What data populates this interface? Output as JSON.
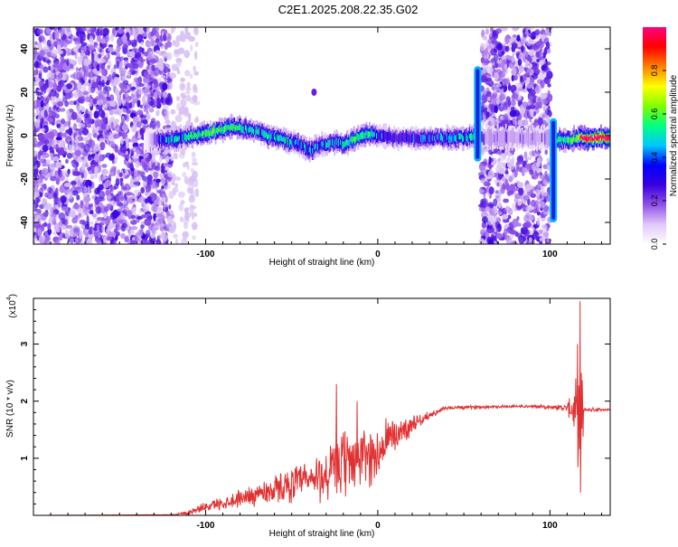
{
  "title": "C2E1.2025.208.22.35.G02",
  "chart_data": [
    {
      "type": "heatmap",
      "title": "",
      "xlabel": "Height of straight line (km)",
      "ylabel": "Frequency (Hz)",
      "xlim": [
        -200,
        135
      ],
      "ylim": [
        -50,
        50
      ],
      "xticks": [
        -100,
        0,
        100
      ],
      "yticks": [
        -40,
        -20,
        0,
        20,
        40
      ],
      "colorbar": {
        "label": "Normalized spectral amplitude",
        "range": [
          0,
          1
        ],
        "ticks": [
          "0.0",
          "0.2",
          "0.4",
          "0.6",
          "0.8"
        ],
        "colormap": [
          "#ffffff",
          "#e0c8f8",
          "#9050e8",
          "#3800e0",
          "#0000ff",
          "#00c8ff",
          "#00ff80",
          "#80ff00",
          "#ffff00",
          "#ff8000",
          "#ff0000",
          "#ff0080"
        ]
      },
      "noise_regions": [
        {
          "x": [
            -200,
            -120
          ],
          "y": [
            -50,
            50
          ],
          "level": 0.2
        },
        {
          "x": [
            -120,
            -105
          ],
          "y": [
            -50,
            50
          ],
          "level": 0.05
        },
        {
          "x": [
            60,
            100
          ],
          "y": [
            -50,
            50
          ],
          "level": 0.2
        }
      ],
      "ridge": {
        "x": [
          -136,
          -134,
          -125,
          -115,
          -105,
          -95,
          -85,
          -75,
          -65,
          -55,
          -45,
          -40,
          -35,
          -30,
          -25,
          -20,
          -15,
          -10,
          -5,
          0,
          10,
          20,
          30,
          40,
          50,
          55,
          58,
          62,
          80,
          100,
          102,
          105,
          110,
          113,
          115,
          118,
          125,
          135
        ],
        "y": [
          -3,
          -2,
          -2,
          -1,
          0,
          2,
          4,
          3,
          0,
          -2,
          -4,
          -7,
          -5,
          -4,
          -3,
          -4,
          -2,
          0,
          1,
          0,
          -1,
          -1,
          -1,
          -1,
          -1,
          -1,
          -1,
          -1,
          -1,
          -1,
          -2,
          -2,
          -2,
          -2,
          -1,
          -1,
          -1,
          -1
        ],
        "amplitude": [
          0.15,
          0.2,
          0.5,
          0.55,
          0.6,
          0.65,
          0.6,
          0.55,
          0.55,
          0.55,
          0.5,
          0.5,
          0.5,
          0.55,
          0.5,
          0.55,
          0.6,
          0.6,
          0.55,
          0.5,
          0.4,
          0.45,
          0.45,
          0.5,
          0.55,
          0.55,
          0.5,
          0.3,
          0.3,
          0.3,
          0.7,
          0.6,
          0.6,
          0.6,
          0.7,
          0.85,
          0.95,
          0.95
        ]
      },
      "spikes": [
        {
          "x": 58,
          "y": [
            -12,
            32
          ]
        },
        {
          "x": 102,
          "y": [
            -40,
            8
          ]
        }
      ],
      "blob": {
        "x": -37,
        "y": 20
      }
    },
    {
      "type": "line",
      "title": "",
      "xlabel": "Height of straight line (km)",
      "ylabel": "SNR (10 * v/v)",
      "y_multiplier_label": "(x10",
      "y_multiplier_exp": "4",
      "xlim": [
        -200,
        135
      ],
      "ylim": [
        0,
        3.8
      ],
      "xticks": [
        -100,
        0,
        100
      ],
      "yticks": [
        1,
        2,
        3
      ],
      "color": "#e03030",
      "profile_x": [
        -200,
        -120,
        -110,
        -100,
        -90,
        -80,
        -70,
        -60,
        -50,
        -40,
        -30,
        -20,
        -15,
        -10,
        -5,
        0,
        5,
        10,
        20,
        30,
        40,
        60,
        80,
        100,
        110,
        115,
        118,
        120,
        122,
        135
      ],
      "profile_y": [
        0.0,
        0.01,
        0.05,
        0.15,
        0.22,
        0.3,
        0.38,
        0.45,
        0.55,
        0.6,
        0.7,
        0.9,
        1.0,
        1.0,
        1.05,
        1.05,
        1.3,
        1.4,
        1.6,
        1.75,
        1.88,
        1.9,
        1.91,
        1.9,
        1.88,
        1.85,
        1.6,
        1.85,
        1.85,
        1.85
      ],
      "amplitude_x": [
        -200,
        -120,
        -100,
        -80,
        -60,
        -40,
        -30,
        -20,
        -15,
        -10,
        0,
        10,
        20,
        30,
        40,
        100,
        110,
        115,
        118,
        120,
        135
      ],
      "amplitude_y": [
        0.0,
        0.005,
        0.08,
        0.15,
        0.25,
        0.35,
        0.5,
        0.6,
        0.6,
        0.55,
        0.5,
        0.35,
        0.15,
        0.06,
        0.03,
        0.03,
        0.07,
        0.5,
        1.2,
        0.04,
        0.02
      ],
      "peaks": [
        {
          "x": -24,
          "y": 2.3
        },
        {
          "x": -12,
          "y": 2.0
        },
        {
          "x": 116,
          "y": 3.0
        },
        {
          "x": 117.5,
          "y": 3.75
        },
        {
          "x": 117.8,
          "y": 0.4
        }
      ]
    }
  ]
}
